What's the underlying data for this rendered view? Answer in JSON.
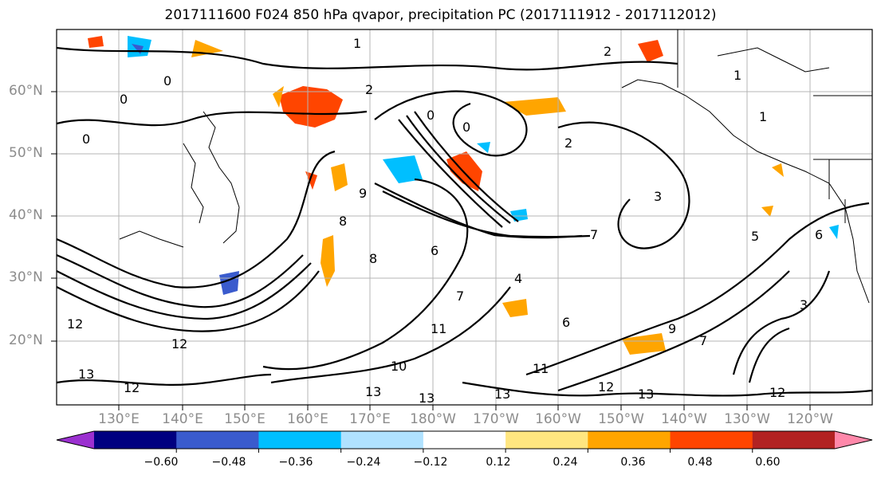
{
  "title": "2017111600 F024 850 hPa qvapor, precipitation PC (2017111912 - 2017112012)",
  "lat_labels": [
    "60°N",
    "50°N",
    "40°N",
    "30°N",
    "20°N"
  ],
  "lon_labels": [
    "130°E",
    "140°E",
    "150°E",
    "160°E",
    "170°E",
    "180°W",
    "170°W",
    "160°W",
    "150°W",
    "140°W",
    "130°W",
    "120°W"
  ],
  "colorbar": {
    "tick_labels": [
      "−0.60",
      "−0.48",
      "−0.36",
      "−0.24",
      "−0.12",
      "0.12",
      "0.24",
      "0.36",
      "0.48",
      "0.60"
    ],
    "colors": [
      "#9b30d0",
      "#000080",
      "#3a5bcd",
      "#00bfff",
      "#b0e2ff",
      "#ffffff",
      "#ffe680",
      "#ffa500",
      "#ff4500",
      "#b22222",
      "#ff88aa"
    ]
  },
  "contour_labels": [
    "1",
    "0",
    "0",
    "2",
    "0",
    "0",
    "1",
    "1",
    "0",
    "9",
    "8",
    "8",
    "6",
    "4",
    "11",
    "12",
    "12",
    "13",
    "13",
    "13",
    "12",
    "13",
    "13",
    "12",
    "3",
    "5",
    "6",
    "9",
    "11",
    "10",
    "6",
    "3",
    "2",
    "2",
    "7",
    "7",
    "7",
    "12"
  ]
}
